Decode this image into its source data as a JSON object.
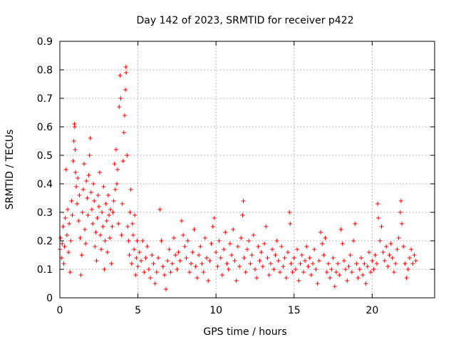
{
  "chart_data": {
    "type": "scatter",
    "title": "Day 142 of 2023, SRMTID for receiver p422",
    "xlabel": "GPS time / hours",
    "ylabel": "SRMTID / TECUs",
    "xlim": [
      0,
      24
    ],
    "ylim": [
      0,
      0.9
    ],
    "xticks": [
      0,
      5,
      10,
      15,
      20
    ],
    "yticks": [
      0,
      0.1,
      0.2,
      0.3,
      0.4,
      0.5,
      0.6,
      0.7,
      0.8,
      0.9
    ],
    "xtick_labels": [
      "0",
      "5",
      "10",
      "15",
      "20"
    ],
    "ytick_labels": [
      "0",
      "0.1",
      "0.2",
      "0.3",
      "0.4",
      "0.5",
      "0.6",
      "0.7",
      "0.8",
      "0.9"
    ],
    "grid": true,
    "marker": "+",
    "color": "#ff0000",
    "series": [
      {
        "name": "SRMTID",
        "points": [
          [
            0.0,
            0.17
          ],
          [
            0.05,
            0.21
          ],
          [
            0.1,
            0.14
          ],
          [
            0.15,
            0.19
          ],
          [
            0.2,
            0.25
          ],
          [
            0.25,
            0.12
          ],
          [
            0.3,
            0.18
          ],
          [
            0.35,
            0.28
          ],
          [
            0.4,
            0.45
          ],
          [
            0.45,
            0.22
          ],
          [
            0.5,
            0.31
          ],
          [
            0.55,
            0.16
          ],
          [
            0.6,
            0.26
          ],
          [
            0.65,
            0.09
          ],
          [
            0.7,
            0.2
          ],
          [
            0.75,
            0.34
          ],
          [
            0.8,
            0.29
          ],
          [
            0.85,
            0.48
          ],
          [
            0.9,
            0.55
          ],
          [
            0.93,
            0.61
          ],
          [
            0.95,
            0.6
          ],
          [
            0.98,
            0.52
          ],
          [
            1.0,
            0.44
          ],
          [
            1.05,
            0.39
          ],
          [
            1.1,
            0.33
          ],
          [
            1.15,
            0.42
          ],
          [
            1.2,
            0.27
          ],
          [
            1.25,
            0.36
          ],
          [
            1.3,
            0.21
          ],
          [
            1.35,
            0.08
          ],
          [
            1.4,
            0.15
          ],
          [
            1.45,
            0.3
          ],
          [
            1.5,
            0.38
          ],
          [
            1.55,
            0.47
          ],
          [
            1.6,
            0.24
          ],
          [
            1.65,
            0.19
          ],
          [
            1.7,
            0.41
          ],
          [
            1.75,
            0.35
          ],
          [
            1.8,
            0.29
          ],
          [
            1.85,
            0.43
          ],
          [
            1.9,
            0.5
          ],
          [
            1.95,
            0.56
          ],
          [
            2.0,
            0.37
          ],
          [
            2.05,
            0.31
          ],
          [
            2.1,
            0.26
          ],
          [
            2.15,
            0.4
          ],
          [
            2.2,
            0.34
          ],
          [
            2.25,
            0.18
          ],
          [
            2.3,
            0.23
          ],
          [
            2.35,
            0.13
          ],
          [
            2.4,
            0.28
          ],
          [
            2.45,
            0.36
          ],
          [
            2.5,
            0.32
          ],
          [
            2.55,
            0.44
          ],
          [
            2.6,
            0.22
          ],
          [
            2.65,
            0.17
          ],
          [
            2.7,
            0.3
          ],
          [
            2.75,
            0.25
          ],
          [
            2.8,
            0.39
          ],
          [
            2.85,
            0.1
          ],
          [
            2.9,
            0.2
          ],
          [
            2.95,
            0.33
          ],
          [
            3.0,
            0.27
          ],
          [
            3.05,
            0.16
          ],
          [
            3.1,
            0.36
          ],
          [
            3.15,
            0.29
          ],
          [
            3.2,
            0.21
          ],
          [
            3.25,
            0.31
          ],
          [
            3.3,
            0.12
          ],
          [
            3.35,
            0.25
          ],
          [
            3.4,
            0.3
          ],
          [
            3.45,
            0.34
          ],
          [
            3.5,
            0.47
          ],
          [
            3.55,
            0.38
          ],
          [
            3.6,
            0.52
          ],
          [
            3.65,
            0.4
          ],
          [
            3.7,
            0.45
          ],
          [
            3.75,
            0.26
          ],
          [
            3.8,
            0.67
          ],
          [
            3.85,
            0.78
          ],
          [
            3.9,
            0.7
          ],
          [
            3.95,
            0.22
          ],
          [
            4.0,
            0.33
          ],
          [
            4.05,
            0.48
          ],
          [
            4.1,
            0.58
          ],
          [
            4.15,
            0.64
          ],
          [
            4.2,
            0.73
          ],
          [
            4.23,
            0.81
          ],
          [
            4.25,
            0.79
          ],
          [
            4.3,
            0.5
          ],
          [
            4.35,
            0.25
          ],
          [
            4.4,
            0.2
          ],
          [
            4.45,
            0.15
          ],
          [
            4.5,
            0.3
          ],
          [
            4.55,
            0.38
          ],
          [
            4.6,
            0.12
          ],
          [
            4.65,
            0.26
          ],
          [
            4.7,
            0.22
          ],
          [
            4.75,
            0.17
          ],
          [
            4.8,
            0.29
          ],
          [
            4.85,
            0.08
          ],
          [
            4.9,
            0.14
          ],
          [
            4.95,
            0.2
          ],
          [
            5.0,
            0.11
          ],
          [
            5.1,
            0.16
          ],
          [
            5.2,
            0.13
          ],
          [
            5.3,
            0.2
          ],
          [
            5.4,
            0.09
          ],
          [
            5.5,
            0.14
          ],
          [
            5.6,
            0.18
          ],
          [
            5.7,
            0.1
          ],
          [
            5.8,
            0.07
          ],
          [
            5.9,
            0.15
          ],
          [
            6.0,
            0.12
          ],
          [
            6.1,
            0.05
          ],
          [
            6.2,
            0.09
          ],
          [
            6.3,
            0.14
          ],
          [
            6.4,
            0.31
          ],
          [
            6.5,
            0.2
          ],
          [
            6.6,
            0.11
          ],
          [
            6.7,
            0.08
          ],
          [
            6.8,
            0.03
          ],
          [
            6.9,
            0.13
          ],
          [
            7.0,
            0.17
          ],
          [
            7.1,
            0.09
          ],
          [
            7.2,
            0.12
          ],
          [
            7.3,
            0.21
          ],
          [
            7.4,
            0.15
          ],
          [
            7.5,
            0.1
          ],
          [
            7.6,
            0.16
          ],
          [
            7.7,
            0.13
          ],
          [
            7.8,
            0.27
          ],
          [
            7.9,
            0.22
          ],
          [
            8.0,
            0.18
          ],
          [
            8.1,
            0.14
          ],
          [
            8.2,
            0.2
          ],
          [
            8.3,
            0.09
          ],
          [
            8.4,
            0.12
          ],
          [
            8.5,
            0.16
          ],
          [
            8.6,
            0.24
          ],
          [
            8.7,
            0.11
          ],
          [
            8.8,
            0.07
          ],
          [
            8.9,
            0.15
          ],
          [
            9.0,
            0.18
          ],
          [
            9.1,
            0.12
          ],
          [
            9.2,
            0.09
          ],
          [
            9.3,
            0.21
          ],
          [
            9.4,
            0.14
          ],
          [
            9.5,
            0.06
          ],
          [
            9.6,
            0.13
          ],
          [
            9.7,
            0.19
          ],
          [
            9.8,
            0.25
          ],
          [
            9.9,
            0.28
          ],
          [
            10.0,
            0.16
          ],
          [
            10.1,
            0.11
          ],
          [
            10.2,
            0.2
          ],
          [
            10.3,
            0.14
          ],
          [
            10.4,
            0.08
          ],
          [
            10.5,
            0.17
          ],
          [
            10.6,
            0.23
          ],
          [
            10.7,
            0.12
          ],
          [
            10.8,
            0.1
          ],
          [
            10.9,
            0.19
          ],
          [
            11.0,
            0.15
          ],
          [
            11.1,
            0.24
          ],
          [
            11.2,
            0.13
          ],
          [
            11.3,
            0.06
          ],
          [
            11.4,
            0.18
          ],
          [
            11.5,
            0.11
          ],
          [
            11.6,
            0.21
          ],
          [
            11.7,
            0.29
          ],
          [
            11.75,
            0.34
          ],
          [
            11.8,
            0.14
          ],
          [
            11.9,
            0.09
          ],
          [
            12.0,
            0.17
          ],
          [
            12.1,
            0.2
          ],
          [
            12.2,
            0.12
          ],
          [
            12.3,
            0.15
          ],
          [
            12.4,
            0.22
          ],
          [
            12.5,
            0.1
          ],
          [
            12.6,
            0.07
          ],
          [
            12.7,
            0.18
          ],
          [
            12.8,
            0.13
          ],
          [
            12.9,
            0.16
          ],
          [
            13.0,
            0.11
          ],
          [
            13.1,
            0.19
          ],
          [
            13.2,
            0.25
          ],
          [
            13.3,
            0.14
          ],
          [
            13.4,
            0.08
          ],
          [
            13.5,
            0.12
          ],
          [
            13.6,
            0.17
          ],
          [
            13.7,
            0.1
          ],
          [
            13.8,
            0.15
          ],
          [
            13.9,
            0.2
          ],
          [
            14.0,
            0.13
          ],
          [
            14.1,
            0.09
          ],
          [
            14.2,
            0.18
          ],
          [
            14.3,
            0.11
          ],
          [
            14.4,
            0.14
          ],
          [
            14.5,
            0.07
          ],
          [
            14.6,
            0.16
          ],
          [
            14.7,
            0.3
          ],
          [
            14.75,
            0.26
          ],
          [
            14.8,
            0.12
          ],
          [
            14.9,
            0.09
          ],
          [
            15.0,
            0.14
          ],
          [
            15.1,
            0.1
          ],
          [
            15.2,
            0.17
          ],
          [
            15.3,
            0.06
          ],
          [
            15.4,
            0.12
          ],
          [
            15.5,
            0.15
          ],
          [
            15.6,
            0.09
          ],
          [
            15.7,
            0.13
          ],
          [
            15.8,
            0.18
          ],
          [
            15.9,
            0.11
          ],
          [
            16.0,
            0.14
          ],
          [
            16.1,
            0.08
          ],
          [
            16.2,
            0.12
          ],
          [
            16.3,
            0.17
          ],
          [
            16.4,
            0.1
          ],
          [
            16.5,
            0.05
          ],
          [
            16.6,
            0.13
          ],
          [
            16.7,
            0.23
          ],
          [
            16.8,
            0.19
          ],
          [
            16.9,
            0.15
          ],
          [
            17.0,
            0.21
          ],
          [
            17.1,
            0.09
          ],
          [
            17.2,
            0.12
          ],
          [
            17.3,
            0.07
          ],
          [
            17.4,
            0.1
          ],
          [
            17.5,
            0.14
          ],
          [
            17.6,
            0.04
          ],
          [
            17.7,
            0.09
          ],
          [
            17.8,
            0.12
          ],
          [
            17.9,
            0.08
          ],
          [
            18.0,
            0.24
          ],
          [
            18.1,
            0.19
          ],
          [
            18.2,
            0.13
          ],
          [
            18.3,
            0.1
          ],
          [
            18.4,
            0.06
          ],
          [
            18.5,
            0.11
          ],
          [
            18.6,
            0.15
          ],
          [
            18.7,
            0.09
          ],
          [
            18.8,
            0.2
          ],
          [
            18.9,
            0.26
          ],
          [
            19.0,
            0.12
          ],
          [
            19.1,
            0.07
          ],
          [
            19.2,
            0.1
          ],
          [
            19.3,
            0.14
          ],
          [
            19.4,
            0.08
          ],
          [
            19.5,
            0.12
          ],
          [
            19.6,
            0.05
          ],
          [
            19.7,
            0.11
          ],
          [
            19.8,
            0.16
          ],
          [
            19.9,
            0.09
          ],
          [
            20.0,
            0.13
          ],
          [
            20.1,
            0.1
          ],
          [
            20.2,
            0.15
          ],
          [
            20.3,
            0.12
          ],
          [
            20.35,
            0.33
          ],
          [
            20.4,
            0.28
          ],
          [
            20.5,
            0.2
          ],
          [
            20.6,
            0.25
          ],
          [
            20.7,
            0.16
          ],
          [
            20.8,
            0.13
          ],
          [
            20.9,
            0.18
          ],
          [
            21.0,
            0.11
          ],
          [
            21.1,
            0.15
          ],
          [
            21.2,
            0.19
          ],
          [
            21.3,
            0.14
          ],
          [
            21.4,
            0.09
          ],
          [
            21.5,
            0.12
          ],
          [
            21.6,
            0.17
          ],
          [
            21.7,
            0.21
          ],
          [
            21.8,
            0.3
          ],
          [
            21.85,
            0.34
          ],
          [
            21.9,
            0.26
          ],
          [
            22.0,
            0.18
          ],
          [
            22.1,
            0.12
          ],
          [
            22.2,
            0.07
          ],
          [
            22.3,
            0.1
          ],
          [
            22.4,
            0.14
          ],
          [
            22.5,
            0.17
          ],
          [
            22.6,
            0.12
          ],
          [
            22.7,
            0.15
          ],
          [
            22.8,
            0.13
          ]
        ]
      }
    ]
  }
}
